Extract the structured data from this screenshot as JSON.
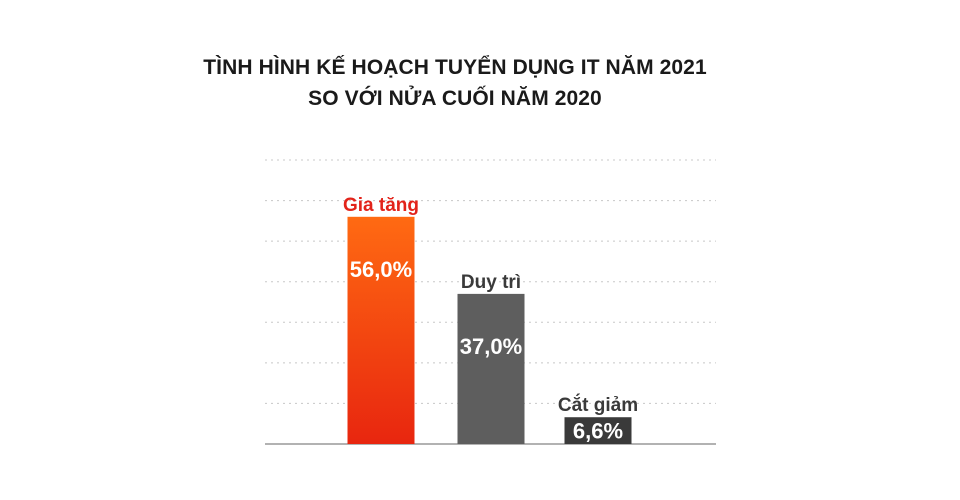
{
  "title_line1": "TÌNH HÌNH KẾ HOẠCH TUYỂN DỤNG IT NĂM 2021",
  "title_line2": "SO VỚI NỬA CUỐI NĂM 2020",
  "colors": {
    "increase_top": "#ff6a12",
    "increase_bottom": "#e8260f",
    "increase_label": "#e2231a",
    "maintain": "#5e5e5e",
    "cut": "#3a3a3a",
    "label_dark": "#3a3a3a",
    "value_text": "#ffffff",
    "grid": "#c8c8c8",
    "axis": "#999999"
  },
  "chart_data": {
    "type": "bar",
    "title": "TÌNH HÌNH KẾ HOẠCH TUYỂN DỤNG IT NĂM 2021 SO VỚI NỬA CUỐI NĂM 2020",
    "categories": [
      "Gia tăng",
      "Duy trì",
      "Cắt giảm"
    ],
    "values": [
      56.0,
      37.0,
      6.6
    ],
    "value_labels": [
      "56,0%",
      "37,0%",
      "6,6%"
    ],
    "ylim": [
      0,
      70
    ],
    "grid": true,
    "legend": "none"
  }
}
